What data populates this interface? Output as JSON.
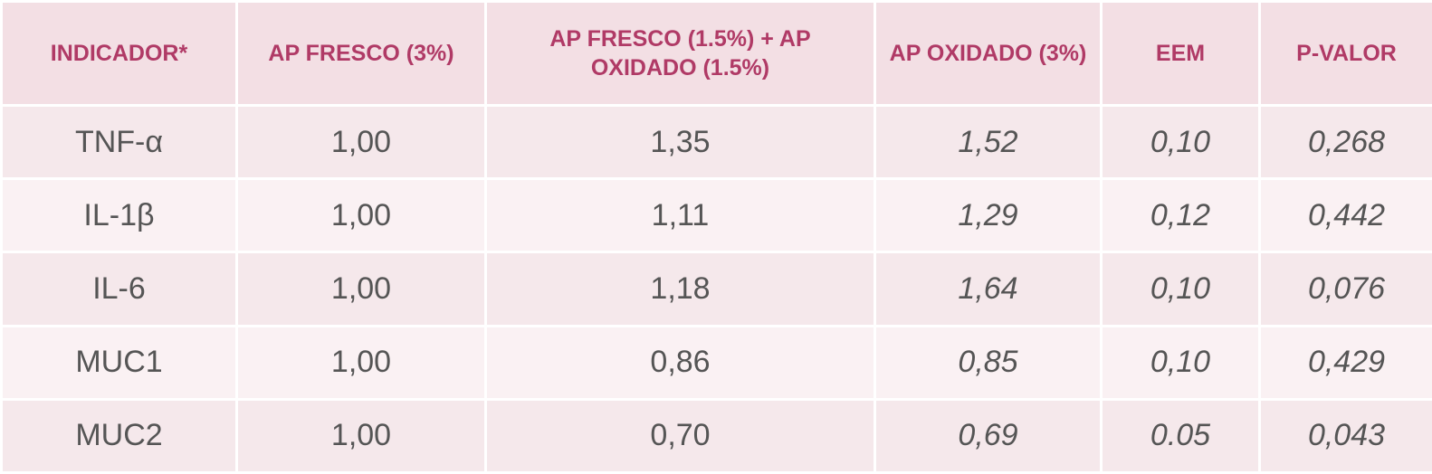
{
  "table": {
    "header": [
      "INDICADOR*",
      "AP FRESCO (3%)",
      "AP FRESCO (1.5%) + AP OXIDADO (1.5%)",
      "AP OXIDADO (3%)",
      "EEM",
      "P-VALOR"
    ],
    "rows": [
      [
        "TNF-α",
        "1,00",
        "1,35",
        "1,52",
        "0,10",
        "0,268"
      ],
      [
        "IL-1β",
        "1,00",
        "1,11",
        "1,29",
        "0,12",
        "0,442"
      ],
      [
        "IL-6",
        "1,00",
        "1,18",
        "1,64",
        "0,10",
        "0,076"
      ],
      [
        "MUC1",
        "1,00",
        "0,86",
        "0,85",
        "0,10",
        "0,429"
      ],
      [
        "MUC2",
        "1,00",
        "0,70",
        "0,69",
        "0.05",
        "0,043"
      ]
    ]
  }
}
